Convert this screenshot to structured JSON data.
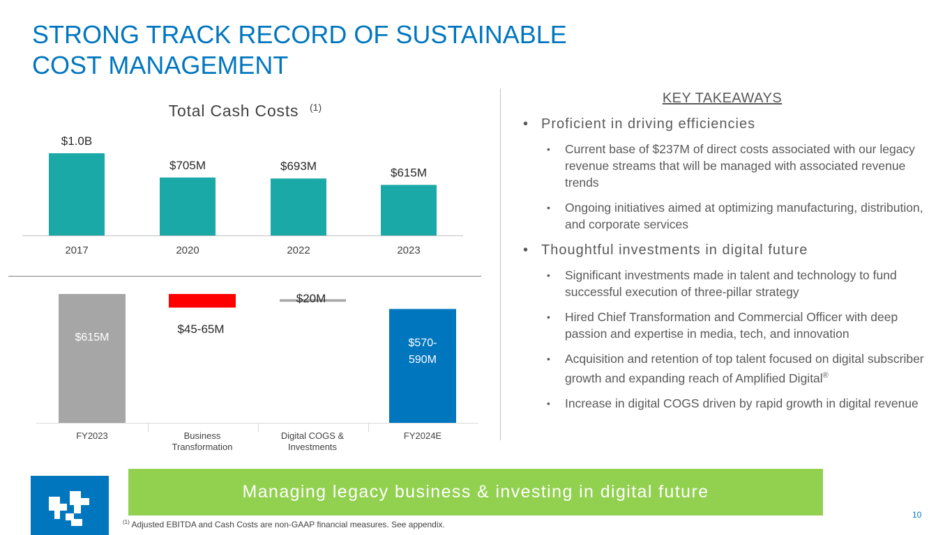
{
  "title": {
    "line1": "STRONG TRACK RECORD OF SUSTAINABLE",
    "line2": "COST MANAGEMENT"
  },
  "chart_data": [
    {
      "type": "bar",
      "title": "Total Cash Costs",
      "title_sup": "(1)",
      "categories": [
        "2017",
        "2020",
        "2022",
        "2023"
      ],
      "values": [
        1000,
        705,
        693,
        615
      ],
      "value_labels": [
        "$1.0B",
        "$705M",
        "$693M",
        "$615M"
      ],
      "units": "$M",
      "ylim": [
        0,
        1000
      ],
      "color": "#1aa9a6",
      "grid": false
    },
    {
      "type": "waterfall",
      "categories": [
        "FY2023",
        "Business\nTransformation",
        "Digital COGS &\nInvestments",
        "FY2024E"
      ],
      "bars": [
        {
          "category": "FY2023",
          "kind": "total",
          "value": 615,
          "label": "$615M",
          "color": "#a6a6a6"
        },
        {
          "category": "Business Transformation",
          "kind": "decrease",
          "range": [
            45,
            65
          ],
          "label": "$45-65M",
          "color": "#ff0000"
        },
        {
          "category": "Digital COGS & Investments",
          "kind": "increase",
          "value": 20,
          "label": "$20M",
          "color": "#a6a6a6"
        },
        {
          "category": "FY2024E",
          "kind": "total",
          "range": [
            570,
            590
          ],
          "label": "$570-\n590M",
          "color": "#0076bf"
        }
      ],
      "ylim": [
        0,
        615
      ]
    }
  ],
  "takeaways": {
    "heading": "KEY TAKEAWAYS",
    "sections": [
      {
        "title": "Proficient in driving efficiencies",
        "items": [
          "Current base of $237M of direct costs associated with our legacy revenue streams that will be managed with associated revenue trends",
          "Ongoing initiatives aimed at optimizing manufacturing, distribution, and corporate services"
        ]
      },
      {
        "title": "Thoughtful investments in digital future",
        "items": [
          "Significant investments made in talent and technology to fund successful execution of three-pillar strategy",
          "Hired Chief Transformation and Commercial Officer with deep passion and expertise in media, tech, and innovation",
          "Acquisition and retention of top talent focused on digital subscriber growth and expanding reach of Amplified Digital",
          "Increase in digital COGS driven by rapid growth in digital revenue"
        ]
      }
    ],
    "registered_mark": "®",
    "bullet": "•"
  },
  "banner": {
    "text": "Managing legacy business & investing in digital future",
    "color": "#92d050"
  },
  "footnote": {
    "sup": "(1)",
    "text": "Adjusted EBITDA and Cash Costs are non-GAAP financial measures. See appendix."
  },
  "page_number": "10",
  "logo": {
    "icon": "company-logo-icon",
    "color": "#0076bf"
  }
}
